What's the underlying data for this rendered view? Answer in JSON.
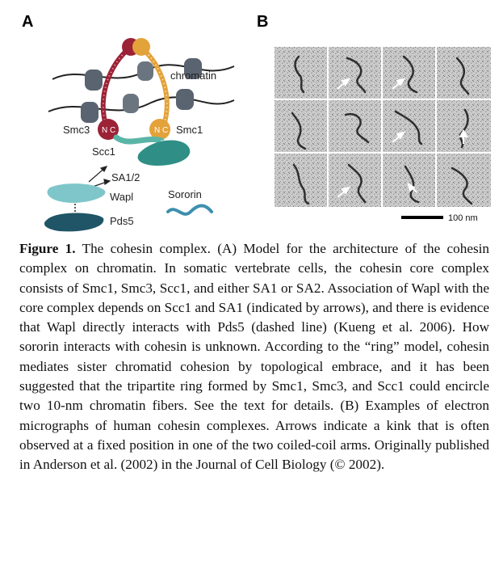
{
  "panels": {
    "a": "A",
    "b": "B"
  },
  "diagram": {
    "chromatin": "chromatin",
    "smc3": "Smc3",
    "smc1": "Smc1",
    "scc1": "Scc1",
    "sa": "SA1/2",
    "wapl": "Wapl",
    "pds5": "Pds5",
    "sororin": "Sororin",
    "n": "N",
    "c": "C",
    "colors": {
      "smc3": "#9c2236",
      "smc1": "#e3a23a",
      "scc1": "#5bb5a6",
      "sa": "#2f8f86",
      "wapl": "#7fc6ca",
      "pds5": "#1f5566",
      "sororin": "#3d8fae",
      "nucleosome": "#5a6470"
    }
  },
  "scale_bar": "100 nm",
  "caption": {
    "fig": "Figure 1.",
    "text": "The cohesin complex. (A) Model for the architecture of the cohesin complex on chromatin. In somatic vertebrate cells, the cohesin core complex consists of Smc1, Smc3, Scc1, and either SA1 or SA2. Association of Wapl with the core complex depends on Scc1 and SA1 (indicated by arrows), and there is evidence that Wapl directly interacts with Pds5 (dashed line) (Kueng et al. 2006). How sororin interacts with cohesin is unknown. According to the “ring” model, cohesin mediates sister chromatid cohesion by topological embrace, and it has been suggested that the tripartite ring formed by Smc1, Smc3, and Scc1 could encircle two 10-nm chromatin fibers. See the text for details. (B) Examples of electron micrographs of human cohesin complexes. Arrows indicate a kink that is often observed at a fixed position in one of the two coiled-coil arms. Originally published in Anderson et al. (2002) in the Journal of Cell Biology (© 2002)."
  }
}
